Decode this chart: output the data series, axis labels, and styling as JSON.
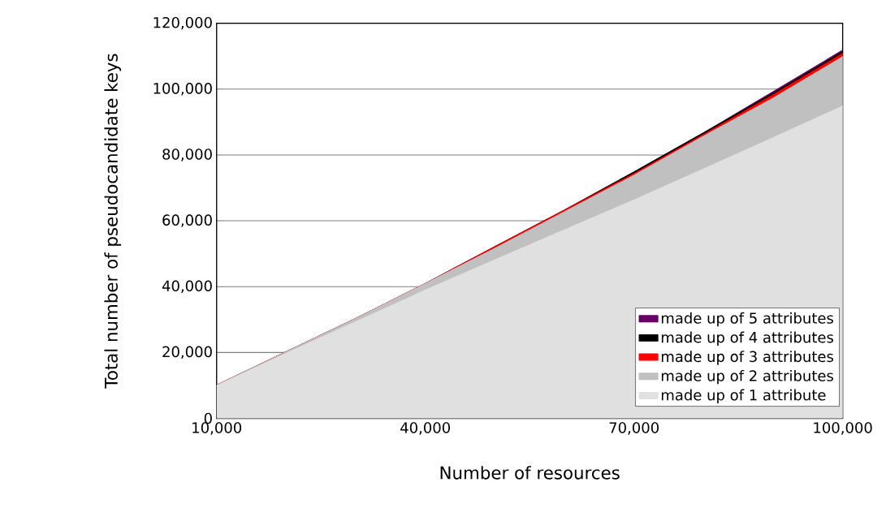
{
  "chart_data": {
    "type": "area",
    "stacked": true,
    "xlabel": "Number of resources",
    "ylabel": "Total number of pseudocandidate keys",
    "x": [
      10000,
      20000,
      30000,
      40000,
      50000,
      60000,
      70000,
      80000,
      90000,
      100000
    ],
    "series": [
      {
        "name": "made up of 1 attribute",
        "color": "#e0e0e0",
        "values": [
          9900,
          19700,
          29300,
          38900,
          48100,
          57200,
          66300,
          75700,
          85200,
          94800
        ]
      },
      {
        "name": "made up of 2 attributes",
        "color": "#c0c0c0",
        "values": [
          100,
          500,
          1000,
          2000,
          3500,
          5500,
          7500,
          10000,
          12000,
          15000
        ]
      },
      {
        "name": "made up of 3 attributes",
        "color": "#ff0000",
        "values": [
          0,
          0,
          0,
          0,
          500,
          500,
          500,
          500,
          1000,
          1000
        ]
      },
      {
        "name": "made up of 4 attributes",
        "color": "#000000",
        "values": [
          0,
          0,
          0,
          0,
          0,
          0,
          500,
          500,
          500,
          500
        ]
      },
      {
        "name": "made up of 5 attributes",
        "color": "#660066",
        "values": [
          0,
          0,
          0,
          0,
          0,
          0,
          0,
          0,
          500,
          500
        ]
      }
    ],
    "xlim": [
      10000,
      100000
    ],
    "xticks": [
      {
        "value": 10000,
        "label": "10,000"
      },
      {
        "value": 20000,
        "label": null
      },
      {
        "value": 30000,
        "label": null
      },
      {
        "value": 40000,
        "label": "40,000"
      },
      {
        "value": 50000,
        "label": null
      },
      {
        "value": 60000,
        "label": null
      },
      {
        "value": 70000,
        "label": "70,000"
      },
      {
        "value": 80000,
        "label": null
      },
      {
        "value": 90000,
        "label": null
      },
      {
        "value": 100000,
        "label": "100,000"
      }
    ],
    "ylim": [
      0,
      120000
    ],
    "yticks": [
      0,
      {
        "value": 20000,
        "label": "20,000"
      },
      {
        "value": 40000,
        "label": "40,000"
      },
      {
        "value": 60000,
        "label": "60,000"
      },
      {
        "value": 80000,
        "label": "80,000"
      },
      {
        "value": 100000,
        "label": "100,000"
      },
      {
        "value": 120000,
        "label": "120,000"
      }
    ],
    "grid": "y",
    "legend": "bottom right"
  }
}
